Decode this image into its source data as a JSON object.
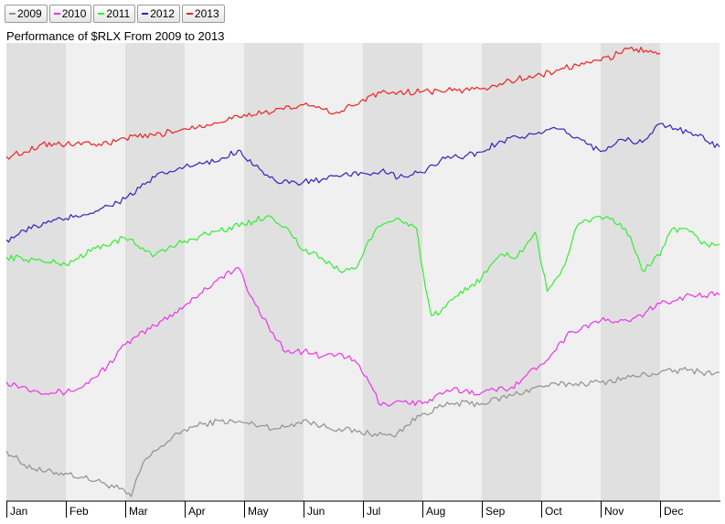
{
  "legend": [
    {
      "label": "2009",
      "color": "#909090"
    },
    {
      "label": "2010",
      "color": "#ee33ee"
    },
    {
      "label": "2011",
      "color": "#33ee33"
    },
    {
      "label": "2012",
      "color": "#3322bb"
    },
    {
      "label": "2013",
      "color": "#ee2222"
    }
  ],
  "title": "Performance of $RLX From 2009 to 2013",
  "chart_data": {
    "type": "line",
    "title": "Performance of $RLX From 2009 to 2013",
    "xlabel": "",
    "ylabel": "",
    "x_categories": [
      "Jan",
      "Feb",
      "Mar",
      "Apr",
      "May",
      "Jun",
      "Jul",
      "Aug",
      "Sep",
      "Oct",
      "Nov",
      "Dec"
    ],
    "x_range_months": [
      0,
      12
    ],
    "y_range": [
      0,
      100
    ],
    "grid": "alternating month bands",
    "legend_position": "top-left",
    "series": [
      {
        "name": "2009",
        "color": "#909090",
        "x": [
          0,
          0.3,
          0.6,
          1.0,
          1.3,
          1.6,
          1.9,
          2.1,
          2.3,
          2.6,
          3.0,
          3.3,
          3.6,
          4.0,
          4.3,
          4.6,
          5.0,
          5.3,
          5.6,
          5.9,
          6.2,
          6.5,
          7.0,
          7.5,
          8.0,
          8.5,
          9.0,
          9.5,
          10.0,
          10.5,
          11.0,
          11.5,
          11.7,
          12.0
        ],
        "y": [
          11,
          8,
          6.5,
          6.1,
          5.1,
          4.1,
          2.7,
          1.0,
          8.4,
          12.0,
          15.6,
          16.8,
          17.5,
          17.1,
          16.5,
          15.8,
          17.7,
          16.4,
          15.8,
          15.1,
          14.7,
          14.2,
          19.1,
          21.3,
          21.3,
          23.1,
          25.1,
          25.6,
          25.9,
          27.1,
          28.1,
          28.7,
          28.1,
          28.1
        ]
      },
      {
        "name": "2010",
        "color": "#ee33ee",
        "x": [
          0,
          0.5,
          1.0,
          1.3,
          1.7,
          2.0,
          2.5,
          3.0,
          3.5,
          3.9,
          4.1,
          4.4,
          4.7,
          5.0,
          5.3,
          5.6,
          5.9,
          6.1,
          6.3,
          6.6,
          7.0,
          7.5,
          8.0,
          8.5,
          9.0,
          9.5,
          10.0,
          10.5,
          11.0,
          11.5,
          12.0
        ],
        "y": [
          26.0,
          24.1,
          23.7,
          25.1,
          29.5,
          34.2,
          38.3,
          42.7,
          47.9,
          51.0,
          44.9,
          38.5,
          32.5,
          32.7,
          31.5,
          32.3,
          30.1,
          26.0,
          20.9,
          21.9,
          21.3,
          24.3,
          23.7,
          24.9,
          29.9,
          37.0,
          39.4,
          39.2,
          43.1,
          45.0,
          45.0
        ]
      },
      {
        "name": "2011",
        "color": "#33ee33",
        "x": [
          0,
          0.5,
          1.0,
          1.5,
          2.0,
          2.5,
          3.0,
          3.5,
          4.0,
          4.4,
          4.7,
          5.0,
          5.3,
          5.6,
          5.9,
          6.1,
          6.3,
          6.6,
          6.9,
          7.05,
          7.15,
          7.3,
          7.6,
          8.0,
          8.3,
          8.6,
          8.9,
          9.1,
          9.4,
          9.6,
          9.9,
          10.2,
          10.5,
          10.7,
          11.0,
          11.2,
          11.5,
          11.7,
          12.0
        ],
        "y": [
          53.3,
          52.6,
          51.7,
          55.2,
          57.4,
          53.7,
          56.8,
          58.8,
          60.4,
          62.3,
          59.9,
          54.7,
          53.1,
          50.3,
          51.0,
          57.0,
          60.0,
          61.7,
          59.6,
          46.6,
          40.5,
          41.1,
          44.8,
          48.8,
          53.7,
          53.4,
          58.7,
          45.8,
          51.6,
          60.0,
          62.0,
          61.7,
          57.8,
          50.3,
          53.6,
          59.4,
          58.8,
          56.1,
          56.1
        ]
      },
      {
        "name": "2012",
        "color": "#3322bb",
        "x": [
          0,
          0.5,
          1.0,
          1.5,
          2.0,
          2.5,
          3.0,
          3.5,
          3.9,
          4.3,
          4.6,
          5.0,
          5.3,
          5.6,
          6.0,
          6.3,
          6.6,
          7.0,
          7.3,
          7.6,
          8.0,
          8.3,
          8.6,
          9.0,
          9.3,
          9.6,
          10.0,
          10.3,
          10.7,
          11.0,
          11.3,
          11.6,
          12.0
        ],
        "y": [
          57.0,
          60.1,
          61.7,
          63.3,
          66.0,
          70.7,
          73.0,
          74.0,
          76.6,
          72.1,
          69.3,
          69.7,
          70.1,
          70.8,
          71.6,
          72.0,
          70.6,
          71.7,
          74.3,
          75.1,
          76.2,
          78.6,
          79.5,
          80.2,
          81.2,
          79.4,
          76.3,
          78.9,
          78.3,
          82.4,
          81.0,
          80.0,
          77.3
        ]
      },
      {
        "name": "2013",
        "color": "#ee2222",
        "x": [
          0,
          0.3,
          0.6,
          1.0,
          1.3,
          1.6,
          2.0,
          2.5,
          3.0,
          3.5,
          4.0,
          4.5,
          5.0,
          5.3,
          5.6,
          6.0,
          6.3,
          6.6,
          7.0,
          7.5,
          8.0,
          8.3,
          8.6,
          9.0,
          9.3,
          9.6,
          10.0,
          10.3,
          10.4,
          10.6,
          10.8,
          11.0
        ],
        "y": [
          75.2,
          76.2,
          78.0,
          77.8,
          78.3,
          77.6,
          79.2,
          79.8,
          81.3,
          82.6,
          84.4,
          85.0,
          86.5,
          85.6,
          84.7,
          87.7,
          89.1,
          89.3,
          89.4,
          89.6,
          90.0,
          91.1,
          92.1,
          93.0,
          94.1,
          95.2,
          96.1,
          97.7,
          98.8,
          98.7,
          98.0,
          97.8
        ]
      }
    ]
  }
}
